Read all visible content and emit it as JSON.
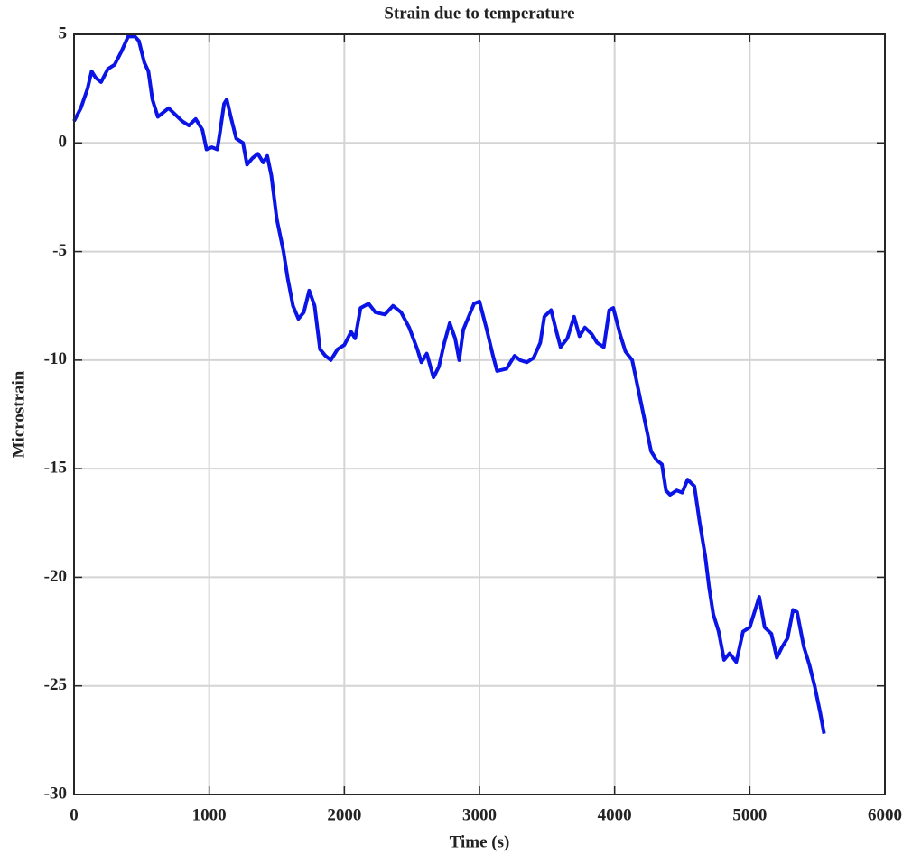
{
  "chart_data": {
    "type": "line",
    "title": "Strain due to temperature",
    "xlabel": "Time (s)",
    "ylabel": "Microstrain",
    "color": "#0a14e6",
    "xlim": [
      0,
      6000
    ],
    "xticks": [
      0,
      1000,
      2000,
      3000,
      4000,
      5000,
      6000
    ],
    "ylim": [
      -30,
      5
    ],
    "yticks": [
      -30,
      -25,
      -20,
      -15,
      -10,
      -5,
      0,
      5
    ],
    "grid": true,
    "x": [
      0,
      50,
      100,
      130,
      160,
      200,
      250,
      300,
      350,
      400,
      450,
      480,
      520,
      550,
      580,
      620,
      660,
      700,
      750,
      800,
      850,
      900,
      950,
      980,
      1020,
      1060,
      1080,
      1110,
      1130,
      1160,
      1200,
      1250,
      1280,
      1320,
      1360,
      1400,
      1430,
      1460,
      1500,
      1550,
      1580,
      1620,
      1660,
      1700,
      1740,
      1780,
      1820,
      1860,
      1900,
      1950,
      2000,
      2050,
      2080,
      2120,
      2180,
      2230,
      2300,
      2360,
      2420,
      2480,
      2540,
      2570,
      2610,
      2660,
      2700,
      2740,
      2780,
      2820,
      2850,
      2880,
      2920,
      2960,
      3000,
      3050,
      3100,
      3130,
      3200,
      3260,
      3300,
      3350,
      3400,
      3450,
      3480,
      3530,
      3570,
      3600,
      3650,
      3700,
      3740,
      3780,
      3830,
      3870,
      3920,
      3960,
      3990,
      4040,
      4080,
      4130,
      4180,
      4230,
      4270,
      4310,
      4350,
      4380,
      4410,
      4460,
      4500,
      4540,
      4590,
      4630,
      4670,
      4700,
      4730,
      4770,
      4810,
      4850,
      4900,
      4950,
      5000,
      5040,
      5070,
      5110,
      5160,
      5200,
      5240,
      5280,
      5320,
      5350,
      5400,
      5440,
      5480,
      5520,
      5550
    ],
    "values": [
      1.0,
      1.6,
      2.5,
      3.3,
      3.0,
      2.8,
      3.4,
      3.6,
      4.2,
      4.9,
      4.9,
      4.7,
      3.7,
      3.3,
      2.0,
      1.2,
      1.4,
      1.6,
      1.3,
      1.0,
      0.8,
      1.1,
      0.6,
      -0.3,
      -0.2,
      -0.3,
      0.5,
      1.8,
      2.0,
      1.2,
      0.2,
      0,
      -1.0,
      -0.7,
      -0.5,
      -0.9,
      -0.6,
      -1.5,
      -3.5,
      -5.0,
      -6.2,
      -7.5,
      -8.1,
      -7.8,
      -6.8,
      -7.5,
      -9.5,
      -9.8,
      -10.0,
      -9.5,
      -9.3,
      -8.7,
      -9.0,
      -7.6,
      -7.4,
      -7.8,
      -7.9,
      -7.5,
      -7.8,
      -8.5,
      -9.5,
      -10.1,
      -9.7,
      -10.8,
      -10.3,
      -9.2,
      -8.3,
      -9.0,
      -10.0,
      -8.6,
      -8.0,
      -7.4,
      -7.3,
      -8.5,
      -9.8,
      -10.5,
      -10.4,
      -9.8,
      -10.0,
      -10.1,
      -9.9,
      -9.2,
      -8.0,
      -7.7,
      -8.7,
      -9.4,
      -9.0,
      -8.0,
      -8.9,
      -8.5,
      -8.8,
      -9.2,
      -9.4,
      -7.7,
      -7.6,
      -8.8,
      -9.6,
      -10.0,
      -11.5,
      -13.0,
      -14.2,
      -14.6,
      -14.8,
      -16.0,
      -16.2,
      -16.0,
      -16.1,
      -15.5,
      -15.8,
      -17.5,
      -19.0,
      -20.5,
      -21.7,
      -22.5,
      -23.8,
      -23.5,
      -23.9,
      -22.5,
      -22.3,
      -21.5,
      -20.9,
      -22.3,
      -22.6,
      -23.7,
      -23.2,
      -22.8,
      -21.5,
      -21.6,
      -23.2,
      -24.0,
      -25.0,
      -26.2,
      -27.2
    ]
  }
}
